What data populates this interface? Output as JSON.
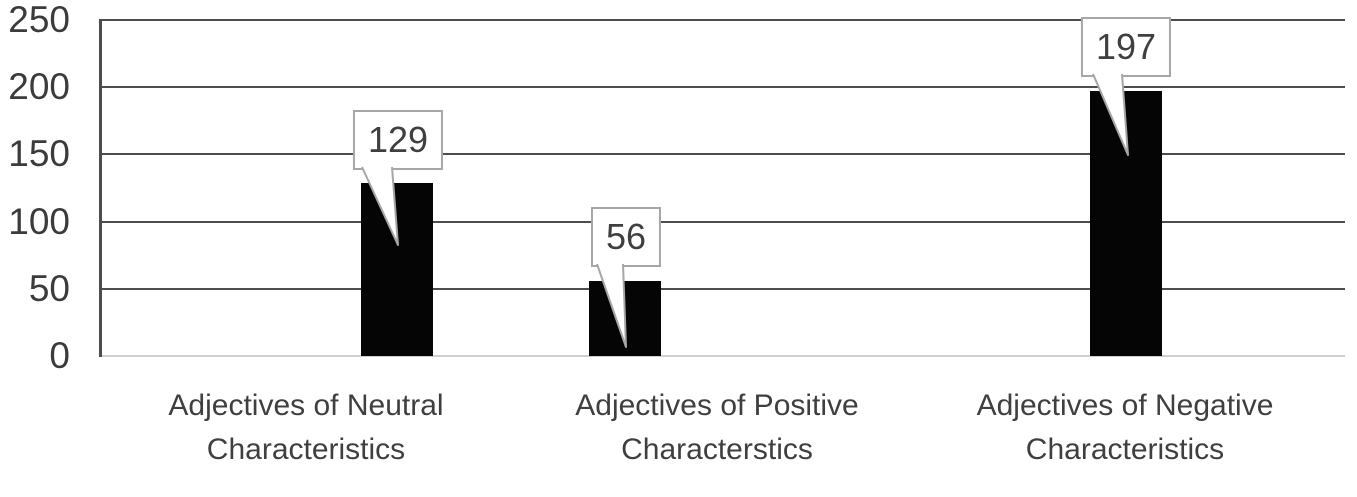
{
  "chart_data": {
    "type": "bar",
    "categories": [
      "Adjectives of Neutral Characteristics",
      "Adjectives of Positive Characterstics",
      "Adjectives of Negative Characteristics"
    ],
    "values": [
      129,
      56,
      197
    ],
    "data_labels": [
      "129",
      "56",
      "197"
    ],
    "y_ticks": [
      0,
      50,
      100,
      150,
      200,
      250
    ],
    "ylim": [
      0,
      250
    ],
    "title": "",
    "xlabel": "",
    "ylabel": "",
    "grid": true,
    "legend": false,
    "bar_color": "#050505",
    "gridline_color": "#4d4d4d",
    "baseline_color": "#cfcfcf",
    "text_color": "#3f3f3f",
    "callout_border_color": "#a6a6a6",
    "callout_fill_color": "#ffffff"
  }
}
